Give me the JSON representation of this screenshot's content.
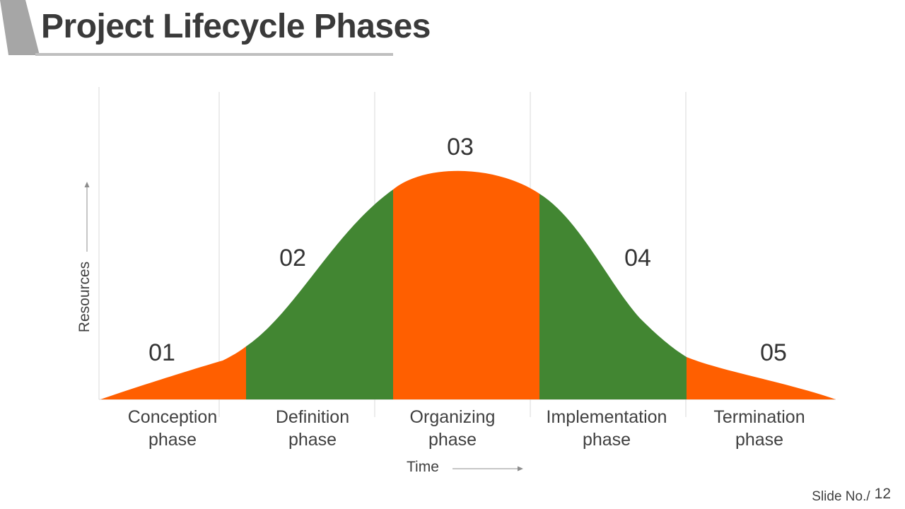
{
  "title": "Project Lifecycle Phases",
  "phases": [
    {
      "number": "01",
      "label_line1": "Conception",
      "label_line2": "phase",
      "color": "#FF5F00"
    },
    {
      "number": "02",
      "label_line1": "Definition",
      "label_line2": "phase",
      "color": "#428632"
    },
    {
      "number": "03",
      "label_line1": "Organizing",
      "label_line2": "phase",
      "color": "#FF5F00"
    },
    {
      "number": "04",
      "label_line1": "Implementation",
      "label_line2": "phase",
      "color": "#428632"
    },
    {
      "number": "05",
      "label_line1": "Termination",
      "label_line2": "phase",
      "color": "#FF5F00"
    }
  ],
  "axes": {
    "y_label": "Resources",
    "x_label": "Time"
  },
  "footer": {
    "slide_label": "Slide No./",
    "slide_number": "12"
  },
  "colors": {
    "orange": "#FF5F00",
    "green": "#428632",
    "title_text": "#3A3A3A",
    "accent_gray": "#A6A6A6"
  }
}
